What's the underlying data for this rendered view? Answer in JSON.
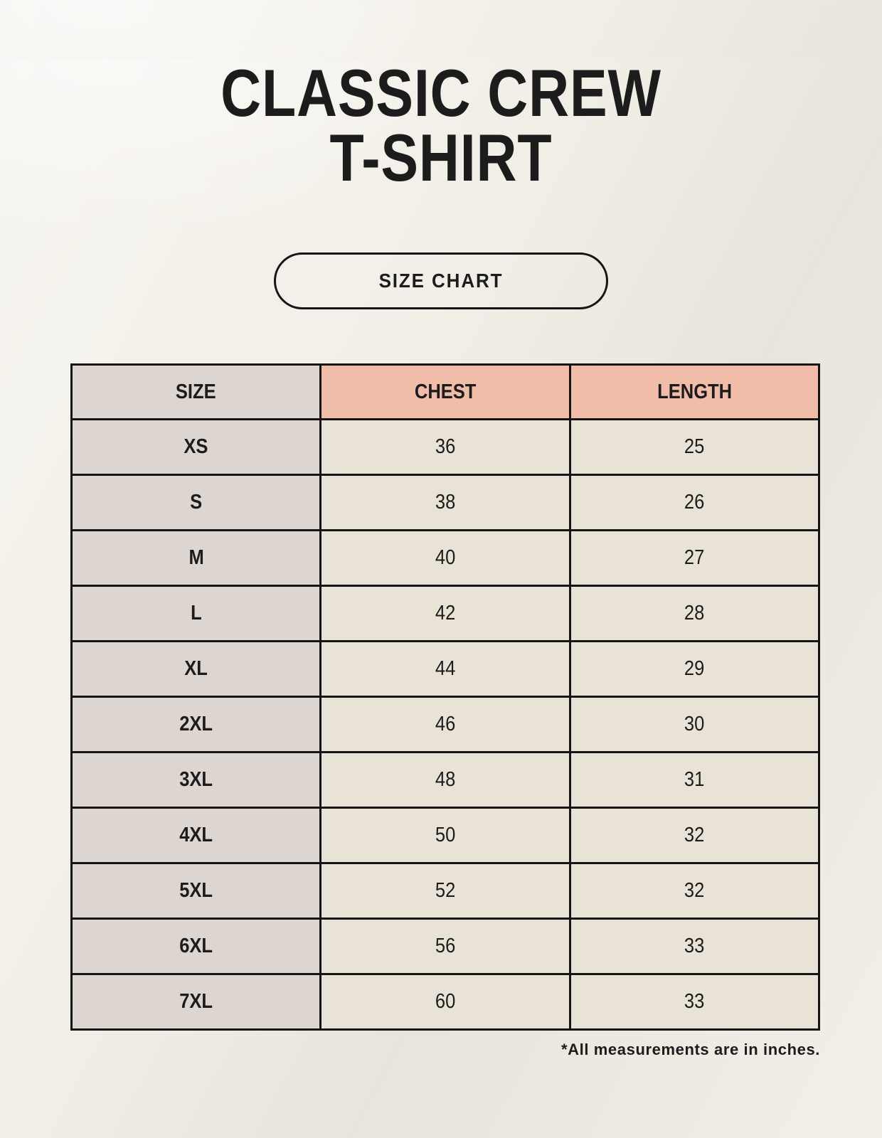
{
  "header": {
    "title_line1": "CLASSIC CREW",
    "title_line2": "T-SHIRT",
    "size_chart_button": "SIZE CHART"
  },
  "chart_data": {
    "type": "table",
    "title": "CLASSIC CREW T-SHIRT",
    "subtitle": "SIZE CHART",
    "columns": [
      "SIZE",
      "CHEST",
      "LENGTH"
    ],
    "rows": [
      [
        "XS",
        36,
        25
      ],
      [
        "S",
        38,
        26
      ],
      [
        "M",
        40,
        27
      ],
      [
        "L",
        42,
        28
      ],
      [
        "XL",
        44,
        29
      ],
      [
        "2XL",
        46,
        30
      ],
      [
        "3XL",
        48,
        31
      ],
      [
        "4XL",
        50,
        32
      ],
      [
        "5XL",
        52,
        32
      ],
      [
        "6XL",
        56,
        33
      ],
      [
        "7XL",
        60,
        33
      ]
    ],
    "units": "inches"
  },
  "footnote": "*All measurements are in inches.",
  "colors": {
    "page_background": "#f1eee6",
    "accent_header": "#f0bda9",
    "size_column": "#dcd5d0",
    "data_cell": "#e9e2d6",
    "table_border": "#151515",
    "text": "#1c1c1c"
  }
}
